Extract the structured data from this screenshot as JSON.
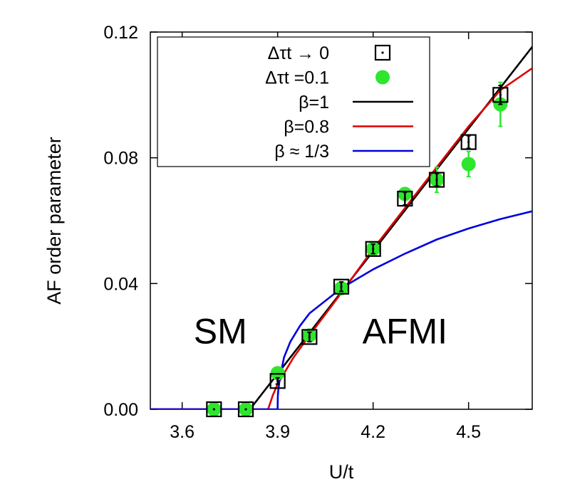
{
  "chart_data": {
    "type": "scatter",
    "xlabel": "U/t",
    "ylabel": "AF order parameter",
    "xlim": [
      3.5,
      4.7
    ],
    "ylim": [
      0.0,
      0.12
    ],
    "x_ticks": [
      "3.6",
      "3.9",
      "4.2",
      "4.5"
    ],
    "y_ticks": [
      "0.00",
      "0.04",
      "0.08",
      "0.12"
    ],
    "grid": false,
    "legend_position": "top-left",
    "annotations": [
      {
        "text": "SM",
        "x": 3.72,
        "y": 0.021
      },
      {
        "text": "AFMI",
        "x": 4.3,
        "y": 0.021
      }
    ],
    "series": [
      {
        "name": "Δτt → 0",
        "kind": "markers",
        "marker": "square-dot",
        "color": "#000000",
        "points": [
          {
            "x": 3.7,
            "y": 0.0,
            "err": 0.0
          },
          {
            "x": 3.8,
            "y": 0.0,
            "err": 0.0
          },
          {
            "x": 3.9,
            "y": 0.009,
            "err": 0.001
          },
          {
            "x": 4.0,
            "y": 0.023,
            "err": 0.0015
          },
          {
            "x": 4.1,
            "y": 0.039,
            "err": 0.0015
          },
          {
            "x": 4.2,
            "y": 0.051,
            "err": 0.0015
          },
          {
            "x": 4.3,
            "y": 0.067,
            "err": 0.002
          },
          {
            "x": 4.4,
            "y": 0.073,
            "err": 0.002
          },
          {
            "x": 4.5,
            "y": 0.085,
            "err": 0.002
          },
          {
            "x": 4.6,
            "y": 0.1,
            "err": 0.003
          }
        ]
      },
      {
        "name": "Δτt =0.1",
        "kind": "markers",
        "marker": "filled-circle",
        "color": "#2ee62e",
        "points": [
          {
            "x": 3.7,
            "y": 0.0,
            "err": 0.0
          },
          {
            "x": 3.8,
            "y": 0.0,
            "err": 0.0
          },
          {
            "x": 3.9,
            "y": 0.0115,
            "err": 0.001
          },
          {
            "x": 4.0,
            "y": 0.0235,
            "err": 0.001
          },
          {
            "x": 4.1,
            "y": 0.0385,
            "err": 0.001
          },
          {
            "x": 4.2,
            "y": 0.051,
            "err": 0.0015
          },
          {
            "x": 4.3,
            "y": 0.0685,
            "err": 0.002
          },
          {
            "x": 4.4,
            "y": 0.073,
            "err": 0.004
          },
          {
            "x": 4.5,
            "y": 0.078,
            "err": 0.004
          },
          {
            "x": 4.6,
            "y": 0.097,
            "err": 0.007
          }
        ]
      },
      {
        "name": "β=1",
        "kind": "line",
        "color": "#000000",
        "points": [
          [
            3.5,
            0.0
          ],
          [
            3.813,
            0.0
          ],
          [
            4.7,
            0.1153
          ]
        ]
      },
      {
        "name": "β=0.8",
        "kind": "line",
        "color": "#e00000",
        "points": [
          [
            3.5,
            0.0
          ],
          [
            3.87,
            0.0
          ],
          [
            3.885,
            0.0045
          ],
          [
            3.9,
            0.008
          ],
          [
            3.95,
            0.0165
          ],
          [
            4.0,
            0.0235
          ],
          [
            4.1,
            0.037
          ],
          [
            4.2,
            0.051
          ],
          [
            4.3,
            0.064
          ],
          [
            4.4,
            0.077
          ],
          [
            4.5,
            0.09
          ],
          [
            4.6,
            0.1015
          ],
          [
            4.7,
            0.1085
          ]
        ]
      },
      {
        "name": "β ≈ 1/3",
        "kind": "line",
        "color": "#0000e0",
        "points": [
          [
            3.5,
            0.0
          ],
          [
            3.9,
            0.0
          ],
          [
            3.9005,
            0.004
          ],
          [
            3.902,
            0.006
          ],
          [
            3.905,
            0.0085
          ],
          [
            3.91,
            0.0115
          ],
          [
            3.92,
            0.0165
          ],
          [
            3.94,
            0.0215
          ],
          [
            3.97,
            0.0265
          ],
          [
            4.0,
            0.0305
          ],
          [
            4.05,
            0.0345
          ],
          [
            4.1,
            0.0385
          ],
          [
            4.2,
            0.0445
          ],
          [
            4.3,
            0.0495
          ],
          [
            4.4,
            0.054
          ],
          [
            4.5,
            0.0575
          ],
          [
            4.6,
            0.0605
          ],
          [
            4.7,
            0.063
          ]
        ]
      }
    ]
  }
}
